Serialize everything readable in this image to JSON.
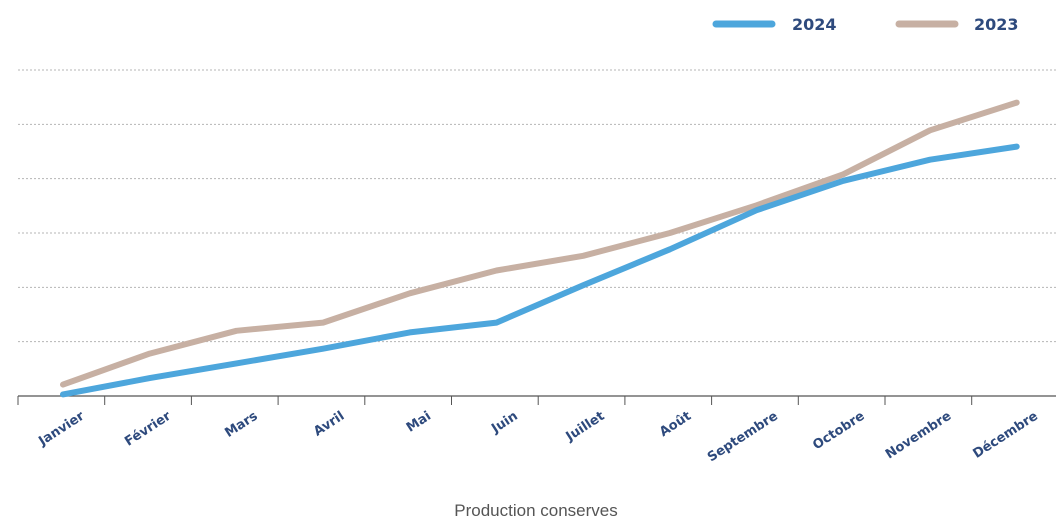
{
  "colors": {
    "series_2024": "#4da6dc",
    "series_2023": "#c7b0a3",
    "tick_text": "#2e4a7d",
    "caption_text": "#555555",
    "grid": "#b5b5b5",
    "axis": "#555555"
  },
  "chart_data": {
    "type": "line",
    "title": "",
    "xlabel": "Production conserves",
    "ylabel": "",
    "ylim": [
      0,
      100
    ],
    "grid": true,
    "legend_position": "top-right",
    "categories": [
      "Janvier",
      "Février",
      "Mars",
      "Avril",
      "Mai",
      "Juin",
      "Juillet",
      "Août",
      "Septembre",
      "Octobre",
      "Novembre",
      "Décembre"
    ],
    "series": [
      {
        "name": "2024",
        "values": [
          0.5,
          5.5,
          10,
          14.5,
          19.5,
          22.5,
          34,
          45,
          57,
          66,
          72.5,
          76.5
        ]
      },
      {
        "name": "2023",
        "values": [
          3.5,
          13,
          20,
          22.5,
          31.5,
          38.5,
          43,
          50,
          58.5,
          68,
          81.5,
          90
        ]
      }
    ]
  }
}
